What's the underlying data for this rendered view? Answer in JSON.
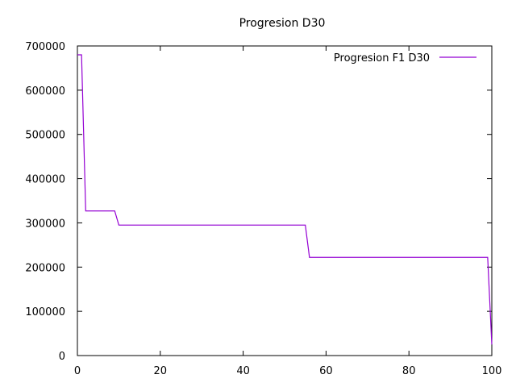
{
  "chart_data": {
    "type": "line",
    "title": "Progresion D30",
    "xlabel": "",
    "ylabel": "",
    "xlim": [
      0,
      100
    ],
    "ylim": [
      0,
      700000
    ],
    "xticks": [
      0,
      20,
      40,
      60,
      80,
      100
    ],
    "yticks": [
      0,
      100000,
      200000,
      300000,
      400000,
      500000,
      600000,
      700000
    ],
    "xtick_labels": [
      "0",
      "20",
      "40",
      "60",
      "80",
      "100"
    ],
    "ytick_labels": [
      "0",
      "100000",
      "200000",
      "300000",
      "400000",
      "500000",
      "600000",
      "700000"
    ],
    "grid": false,
    "legend_position": "top-right",
    "series": [
      {
        "name": "Progresion F1 D30",
        "color": "#9400d3",
        "x": [
          0,
          1,
          2,
          9,
          10,
          55,
          56,
          99,
          100
        ],
        "y": [
          680000,
          680000,
          327000,
          327000,
          295000,
          295000,
          222000,
          222000,
          25000
        ]
      }
    ]
  }
}
